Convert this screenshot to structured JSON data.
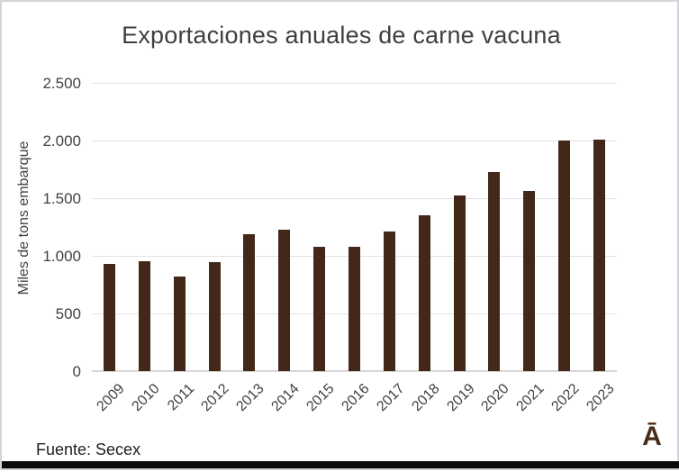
{
  "title": "Exportaciones anuales de carne vacuna",
  "source_label": "Fuente: Secex",
  "logo_glyph": "Ā",
  "colors": {
    "bar": "#43281a",
    "grid": "#e2e2e2",
    "zero_line": "#d7d7d7",
    "axis_text": "#424242",
    "title_text": "#3f3f3f",
    "logo": "#4a2b19",
    "frame_border": "#d6d3d8",
    "footer_bar": "#0a0a0a",
    "background": "#ffffff"
  },
  "chart_data": {
    "type": "bar",
    "title": "Exportaciones anuales de carne vacuna",
    "xlabel": "",
    "ylabel": "Miles de tons embarque",
    "categories": [
      "2009",
      "2010",
      "2011",
      "2012",
      "2013",
      "2014",
      "2015",
      "2016",
      "2017",
      "2018",
      "2019",
      "2020",
      "2021",
      "2022",
      "2023"
    ],
    "values": [
      930,
      955,
      820,
      945,
      1185,
      1225,
      1080,
      1080,
      1210,
      1350,
      1520,
      1725,
      1560,
      2000,
      2005
    ],
    "ylim": [
      0,
      2500
    ],
    "ytick_values": [
      0,
      500,
      1000,
      1500,
      2000,
      2500
    ],
    "ytick_labels": [
      "0",
      "500",
      "1.000",
      "1.500",
      "2.000",
      "2.500"
    ],
    "grid": true,
    "legend": false,
    "source": "Fuente: Secex"
  }
}
